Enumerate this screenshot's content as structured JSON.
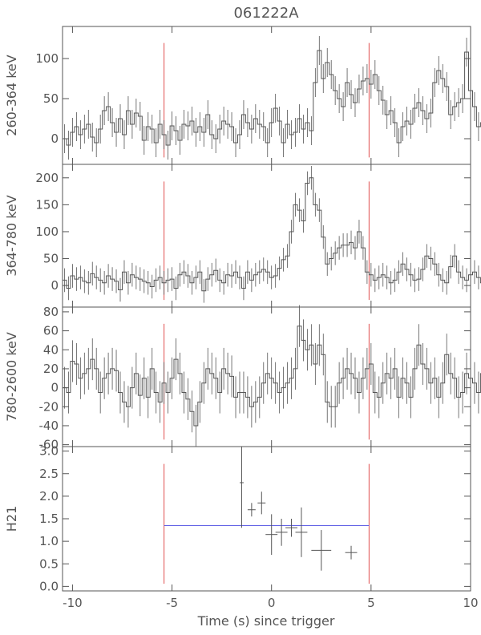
{
  "chart_data": {
    "type": "line",
    "title": "061222A",
    "xlabel": "Time (s) since trigger",
    "xlim": [
      -10.5,
      10
    ],
    "x_ticks": [
      -10,
      -5,
      0,
      5,
      10
    ],
    "grid": false,
    "colors": {
      "axes": "#555555",
      "histogram": "#555555",
      "markers": "#e05050",
      "hr_band": "#6464e6"
    },
    "markers_x": [
      -5.4,
      4.9
    ],
    "panels": [
      {
        "ylabel": "260-364 keV",
        "ylim": [
          -32,
          140
        ],
        "y_ticks": [
          0,
          50,
          100
        ],
        "bin_start": -10.5,
        "bin_width": 0.2,
        "error": 18,
        "values": [
          0,
          -8,
          8,
          15,
          5,
          12,
          18,
          2,
          -5,
          12,
          35,
          40,
          20,
          8,
          25,
          5,
          35,
          18,
          32,
          28,
          -2,
          15,
          12,
          -5,
          18,
          5,
          -8,
          16,
          10,
          -2,
          18,
          16,
          22,
          8,
          15,
          8,
          30,
          5,
          0,
          12,
          22,
          18,
          15,
          -5,
          5,
          30,
          20,
          12,
          25,
          18,
          15,
          -5,
          20,
          38,
          22,
          -5,
          18,
          5,
          8,
          25,
          12,
          20,
          10,
          70,
          110,
          75,
          95,
          80,
          60,
          50,
          40,
          70,
          55,
          45,
          62,
          72,
          75,
          68,
          80,
          60,
          48,
          30,
          35,
          20,
          -5,
          15,
          22,
          18,
          38,
          45,
          35,
          25,
          32,
          70,
          85,
          75,
          65,
          30,
          40,
          45,
          50,
          108,
          60,
          40,
          15,
          20,
          30,
          15,
          12,
          18,
          10,
          8,
          22,
          15,
          8,
          22,
          5,
          15,
          20,
          -2,
          10,
          0,
          22,
          5,
          -5,
          -2,
          5,
          0
        ]
      },
      {
        "ylabel": "364-780 keV",
        "ylim": [
          -40,
          225
        ],
        "y_ticks": [
          0,
          50,
          100,
          150,
          200
        ],
        "bin_start": -10.5,
        "bin_width": 0.2,
        "error": 22,
        "values": [
          10,
          -5,
          18,
          12,
          15,
          8,
          5,
          22,
          15,
          10,
          5,
          18,
          12,
          8,
          -8,
          25,
          5,
          20,
          15,
          12,
          8,
          5,
          -2,
          10,
          15,
          5,
          10,
          12,
          -5,
          20,
          25,
          18,
          5,
          15,
          25,
          -10,
          12,
          20,
          28,
          10,
          5,
          20,
          18,
          25,
          15,
          -5,
          25,
          10,
          20,
          25,
          30,
          25,
          15,
          18,
          32,
          48,
          55,
          100,
          150,
          140,
          120,
          190,
          200,
          150,
          140,
          90,
          40,
          50,
          60,
          70,
          75,
          75,
          80,
          70,
          100,
          70,
          25,
          20,
          10,
          15,
          20,
          15,
          5,
          10,
          25,
          40,
          30,
          20,
          10,
          12,
          30,
          55,
          50,
          40,
          20,
          10,
          5,
          35,
          55,
          25,
          15,
          10,
          20,
          25,
          15,
          5,
          10,
          20,
          15,
          25,
          10,
          5,
          15,
          25,
          35,
          20,
          8,
          10,
          -2,
          10,
          5,
          15,
          8,
          5
        ]
      },
      {
        "ylabel": "780-2600 keV",
        "ylim": [
          -62,
          85
        ],
        "y_ticks": [
          -60,
          -40,
          -20,
          0,
          20,
          40,
          60,
          80
        ],
        "bin_start": -10.5,
        "bin_width": 0.2,
        "error": 22,
        "values": [
          0,
          -5,
          28,
          25,
          10,
          15,
          20,
          30,
          20,
          -5,
          10,
          15,
          20,
          18,
          -5,
          -15,
          -20,
          0,
          15,
          -8,
          10,
          -10,
          20,
          -5,
          -15,
          5,
          -5,
          10,
          30,
          15,
          -5,
          -12,
          -25,
          -40,
          -15,
          5,
          20,
          15,
          10,
          -5,
          20,
          15,
          12,
          -10,
          -5,
          -5,
          -10,
          -20,
          -15,
          -10,
          5,
          15,
          10,
          5,
          -5,
          0,
          5,
          10,
          20,
          65,
          50,
          40,
          45,
          25,
          45,
          35,
          -15,
          -20,
          -20,
          5,
          10,
          20,
          15,
          10,
          -5,
          10,
          20,
          25,
          -5,
          -10,
          5,
          15,
          10,
          20,
          -10,
          10,
          5,
          -10,
          20,
          45,
          25,
          20,
          5,
          10,
          -10,
          5,
          35,
          15,
          10,
          -10,
          -5,
          15,
          10,
          5,
          -5,
          15,
          25,
          -5,
          5,
          -10,
          10,
          20,
          -5,
          10,
          -20,
          -15,
          -10,
          5,
          25,
          -30,
          10,
          -5,
          -10,
          25,
          -30
        ]
      },
      {
        "ylabel": "H21",
        "ylim": [
          -0.1,
          3.1
        ],
        "y_ticks": [
          0.0,
          0.5,
          1.0,
          1.5,
          2.0,
          2.5,
          3.0
        ],
        "band": {
          "x": [
            -5.4,
            4.9
          ],
          "y": 1.35
        },
        "points": [
          {
            "x": -1.5,
            "xerr": 0.1,
            "y": 2.3,
            "yerr": 1.0
          },
          {
            "x": -1.0,
            "xerr": 0.2,
            "y": 1.7,
            "yerr": 0.15
          },
          {
            "x": -0.5,
            "xerr": 0.2,
            "y": 1.85,
            "yerr": 0.25
          },
          {
            "x": 0.0,
            "xerr": 0.3,
            "y": 1.15,
            "yerr": 0.45
          },
          {
            "x": 0.5,
            "xerr": 0.3,
            "y": 1.2,
            "yerr": 0.3
          },
          {
            "x": 1.0,
            "xerr": 0.3,
            "y": 1.3,
            "yerr": 0.2
          },
          {
            "x": 1.5,
            "xerr": 0.3,
            "y": 1.2,
            "yerr": 0.55
          },
          {
            "x": 2.5,
            "xerr": 0.5,
            "y": 0.8,
            "yerr": 0.45
          },
          {
            "x": 4.0,
            "xerr": 0.3,
            "y": 0.75,
            "yerr": 0.15
          }
        ]
      }
    ]
  }
}
